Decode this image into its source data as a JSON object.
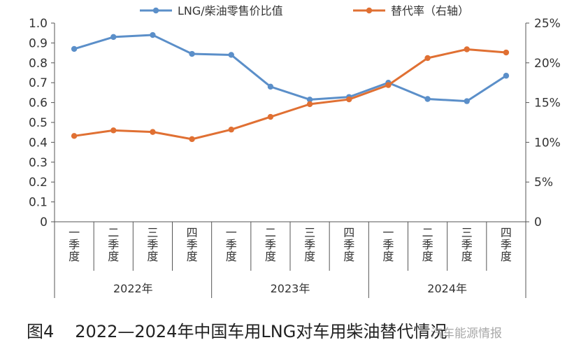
{
  "chart_data": {
    "type": "line",
    "title": "",
    "categories": [
      "一季度",
      "二季度",
      "三季度",
      "四季度",
      "一季度",
      "二季度",
      "三季度",
      "四季度",
      "一季度",
      "二季度",
      "三季度",
      "四季度"
    ],
    "groups": [
      {
        "label": "2022年",
        "count": 4
      },
      {
        "label": "2023年",
        "count": 4
      },
      {
        "label": "2024年",
        "count": 4
      }
    ],
    "series": [
      {
        "name": "LNG/柴油零售价比值",
        "axis": "left",
        "color": "#5b8fc9",
        "values": [
          0.87,
          0.93,
          0.94,
          0.845,
          0.84,
          0.68,
          0.615,
          0.628,
          0.7,
          0.618,
          0.607,
          0.735
        ]
      },
      {
        "name": "替代率（右轴）",
        "axis": "right",
        "color": "#e07033",
        "values": [
          10.8,
          11.5,
          11.3,
          10.4,
          11.6,
          13.2,
          14.8,
          15.4,
          17.2,
          20.6,
          21.7,
          21.3
        ]
      }
    ],
    "y_left": {
      "min": 0,
      "max": 1.0,
      "ticks": [
        "0",
        "0.1",
        "0.2",
        "0.3",
        "0.4",
        "0.5",
        "0.6",
        "0.7",
        "0.8",
        "0.9",
        "1.0"
      ]
    },
    "y_right": {
      "min": 0,
      "max": 25,
      "ticks": [
        "0",
        "5%",
        "10%",
        "15%",
        "20%",
        "25%"
      ]
    },
    "grid": false,
    "legend_position": "top"
  },
  "caption": {
    "number": "图4",
    "text": "2022—2024年中国车用LNG对车用柴油替代情况"
  },
  "watermark": "汽车能源情报"
}
